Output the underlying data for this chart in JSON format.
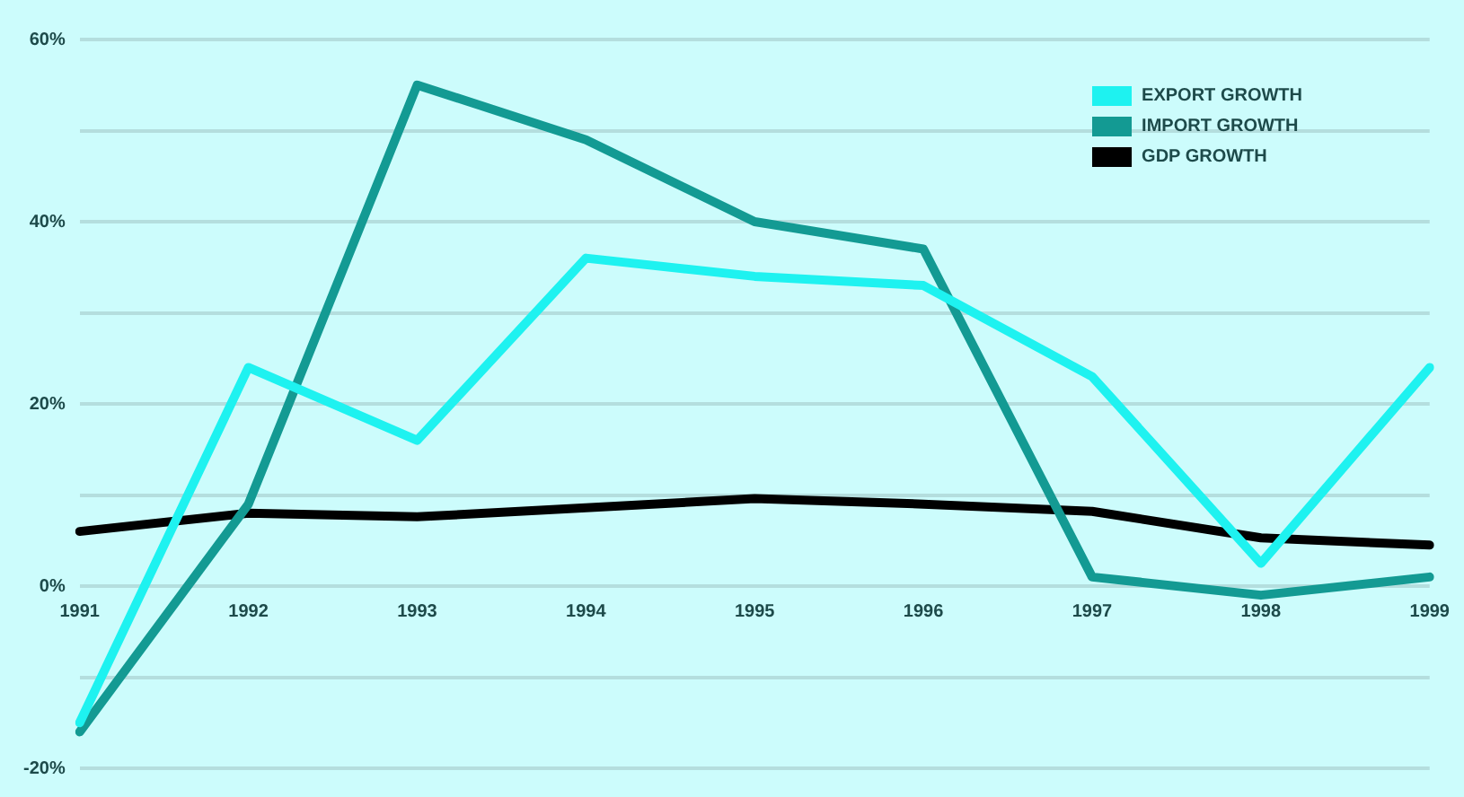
{
  "chart_data": {
    "type": "line",
    "categories": [
      "1991",
      "1992",
      "1993",
      "1994",
      "1995",
      "1996",
      "1997",
      "1998",
      "1999"
    ],
    "series": [
      {
        "name": "EXPORT GROWTH",
        "color": "#1ef2f0",
        "values": [
          -15,
          24,
          16,
          36,
          34,
          33,
          23,
          2.5,
          24
        ]
      },
      {
        "name": "IMPORT GROWTH",
        "color": "#139a93",
        "values": [
          -16,
          9,
          55,
          49,
          40,
          37,
          1,
          -1,
          1
        ]
      },
      {
        "name": "GDP GROWTH",
        "color": "#000000",
        "values": [
          6,
          8,
          7.6,
          8.6,
          9.6,
          9,
          8.2,
          5.3,
          4.5
        ]
      }
    ],
    "ylim": [
      -20,
      60
    ],
    "yticks": [
      {
        "value": -20,
        "label": "-20%"
      },
      {
        "value": -10,
        "label": null
      },
      {
        "value": 0,
        "label": "0%"
      },
      {
        "value": 10,
        "label": null
      },
      {
        "value": 20,
        "label": "20%"
      },
      {
        "value": 30,
        "label": null
      },
      {
        "value": 40,
        "label": "40%"
      },
      {
        "value": 50,
        "label": null
      },
      {
        "value": 60,
        "label": "60%"
      }
    ],
    "grid": "y",
    "legend": "top right",
    "marker": "none",
    "line_style": "solid"
  }
}
